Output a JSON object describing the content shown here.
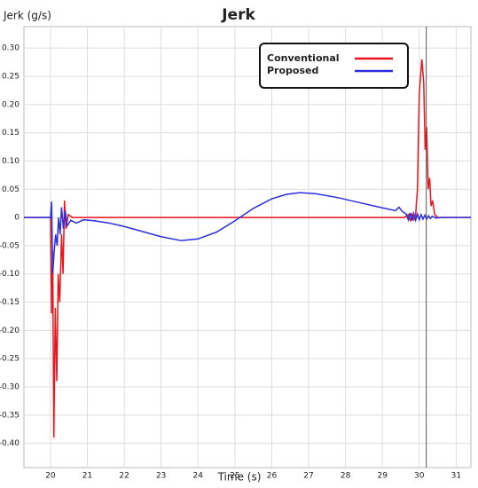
{
  "chart_data": {
    "type": "line",
    "title": "Jerk",
    "y_label": "Jerk (g/s)",
    "x_label": "Time (s)",
    "xlim": [
      19.28,
      31.4
    ],
    "ylim": [
      -0.443,
      0.338
    ],
    "xticks": [
      20,
      21,
      22,
      23,
      24,
      25,
      26,
      27,
      28,
      29,
      30,
      31
    ],
    "yticks": [
      {
        "value": 0.3,
        "label": "0.30"
      },
      {
        "value": 0.25,
        "label": "0.25"
      },
      {
        "value": 0.2,
        "label": "0.20"
      },
      {
        "value": 0.15,
        "label": "0.15"
      },
      {
        "value": 0.1,
        "label": "0.10"
      },
      {
        "value": 0.05,
        "label": "0.05"
      },
      0,
      {
        "value": -0.05,
        "label": "-0.05"
      },
      {
        "value": -0.1,
        "label": "-0.10"
      },
      {
        "value": -0.15,
        "label": "-0.15"
      },
      {
        "value": -0.2,
        "label": "-0.20"
      },
      {
        "value": -0.25,
        "label": "-0.25"
      },
      {
        "value": -0.3,
        "label": "-0.30"
      },
      {
        "value": -0.35,
        "label": "-0.35"
      },
      {
        "value": -0.4,
        "label": "-0.40"
      }
    ],
    "grid": true,
    "legend": "upper right",
    "cursor_x": 30.19,
    "series": [
      {
        "name": "Conventional",
        "color": "#e8141c",
        "x": [
          19.28,
          20.0,
          20.03,
          20.06,
          20.09,
          20.13,
          20.17,
          20.21,
          20.25,
          20.3,
          20.34,
          20.38,
          20.42,
          20.48,
          20.6,
          29.6,
          29.7,
          29.75,
          29.8,
          29.85,
          29.9,
          29.95,
          30.0,
          30.07,
          30.12,
          30.16,
          30.2,
          30.24,
          30.28,
          30.32,
          30.36,
          30.42,
          30.5,
          31.4
        ],
        "values": [
          0,
          0,
          -0.17,
          -0.06,
          -0.39,
          -0.16,
          -0.29,
          -0.1,
          -0.15,
          -0.03,
          -0.1,
          0.03,
          -0.02,
          0.005,
          0,
          0,
          0.005,
          -0.005,
          0.006,
          -0.004,
          0.003,
          0.05,
          0.22,
          0.28,
          0.24,
          0.12,
          0.16,
          0.05,
          0.07,
          0.02,
          0.03,
          0.005,
          0,
          0
        ]
      },
      {
        "name": "Proposed",
        "color": "#2a2ee0",
        "x": [
          19.28,
          20.0,
          20.03,
          20.06,
          20.1,
          20.14,
          20.18,
          20.22,
          20.26,
          20.3,
          20.35,
          20.4,
          20.45,
          20.55,
          20.7,
          20.9,
          21.2,
          21.6,
          22.0,
          22.5,
          23.0,
          23.54,
          24.0,
          24.5,
          25.0,
          25.5,
          26.0,
          26.4,
          26.77,
          27.2,
          27.8,
          28.4,
          29.0,
          29.35,
          29.45,
          29.55,
          29.65,
          29.7,
          29.75,
          29.8,
          29.85,
          29.9,
          29.95,
          30.0,
          30.05,
          30.1,
          30.15,
          30.2,
          30.25,
          30.3,
          30.35,
          30.45,
          30.6,
          31.4
        ],
        "values": [
          0,
          0,
          0.028,
          -0.1,
          -0.06,
          -0.03,
          -0.05,
          0.0,
          -0.03,
          0.018,
          -0.02,
          0.012,
          -0.015,
          -0.005,
          -0.01,
          -0.004,
          -0.006,
          -0.01,
          -0.016,
          -0.025,
          -0.034,
          -0.041,
          -0.038,
          -0.026,
          -0.006,
          0.016,
          0.033,
          0.041,
          0.044,
          0.042,
          0.035,
          0.026,
          0.017,
          0.012,
          0.018,
          0.01,
          0.006,
          -0.004,
          0.008,
          -0.006,
          0.007,
          -0.005,
          0.006,
          -0.004,
          0.005,
          -0.003,
          0.004,
          -0.003,
          0.003,
          -0.002,
          0.002,
          -0.001,
          0,
          0
        ]
      }
    ]
  }
}
